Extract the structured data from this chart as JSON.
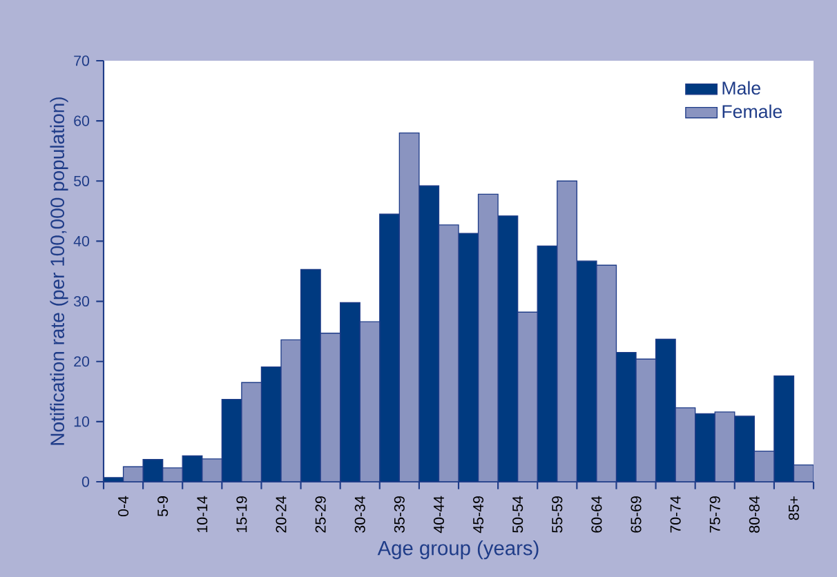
{
  "chart_data": {
    "type": "bar",
    "xlabel": "Age group (years)",
    "ylabel": "Notification rate (per 100,000 population)",
    "categories": [
      "0-4",
      "5-9",
      "10-14",
      "15-19",
      "20-24",
      "25-29",
      "30-34",
      "35-39",
      "40-44",
      "45-49",
      "50-54",
      "55-59",
      "60-64",
      "65-69",
      "70-74",
      "75-79",
      "80-84",
      "85+"
    ],
    "series": [
      {
        "name": "Male",
        "color": "#003a80",
        "values": [
          0.7,
          3.7,
          4.3,
          13.7,
          19.1,
          35.3,
          29.8,
          44.5,
          49.2,
          41.3,
          44.2,
          39.2,
          36.7,
          21.5,
          23.7,
          11.3,
          10.9,
          17.6
        ]
      },
      {
        "name": "Female",
        "color": "#8a94c0",
        "values": [
          2.5,
          2.3,
          3.8,
          16.5,
          23.6,
          24.7,
          26.6,
          58,
          42.7,
          47.8,
          28.2,
          50,
          36,
          20.4,
          12.3,
          11.6,
          5.1,
          2.8
        ]
      }
    ],
    "ylim": [
      0,
      70
    ],
    "yticks": [
      0,
      10,
      20,
      30,
      40,
      50,
      60,
      70
    ],
    "legend": "top right"
  }
}
